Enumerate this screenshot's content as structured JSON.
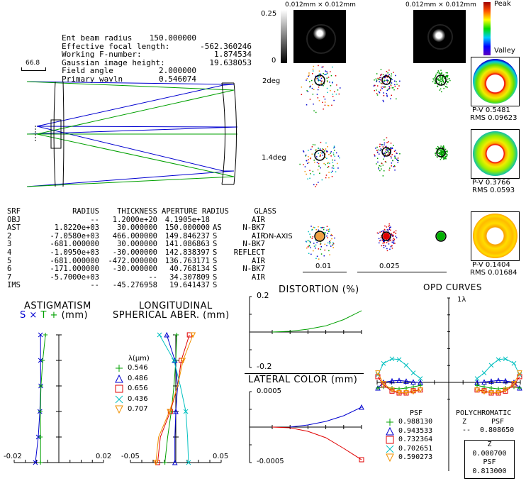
{
  "system_info": {
    "rows": [
      {
        "label": "Ent beam radius",
        "value": "150.000000"
      },
      {
        "label": "Effective focal length:",
        "value": "-562.360246"
      },
      {
        "label": "Working F-number:",
        "value": "1.874534"
      },
      {
        "label": "Gaussian image height:",
        "value": "19.638053"
      },
      {
        "label": "Field angle",
        "value": "2.000000"
      },
      {
        "label": "Primary wavln",
        "value": "0.546074"
      }
    ],
    "scale_bar": "66.8"
  },
  "prescription": {
    "headers": [
      "SRF",
      "RADIUS",
      "THICKNESS",
      "APERTURE RADIUS",
      "",
      "GLASS"
    ],
    "rows": [
      [
        "OBJ",
        "--",
        "1.2000e+20",
        "4.1905e+18",
        "",
        "AIR"
      ],
      [
        "AST",
        "1.8220e+03",
        "30.000000",
        "150.000000",
        "AS",
        "N-BK7"
      ],
      [
        "2",
        "-7.0580e+03",
        "466.000000",
        "149.846237",
        "S",
        "AIR"
      ],
      [
        "3",
        "-681.000000",
        "30.000000",
        "141.086863",
        "S",
        "N-BK7"
      ],
      [
        "4",
        "-1.0950e+03",
        "-30.000000",
        "142.838397",
        "S",
        "REFLECT"
      ],
      [
        "5",
        "-681.000000",
        "-472.000000",
        "136.763171",
        "S",
        "AIR"
      ],
      [
        "6",
        "-171.000000",
        "-30.000000",
        "40.768134",
        "S",
        "N-BK7"
      ],
      [
        "7",
        "-5.7000e+03",
        "--",
        "34.307809",
        "S",
        "AIR"
      ],
      [
        "IMS",
        "--",
        "-45.276958",
        "19.641437",
        "S",
        ""
      ]
    ]
  },
  "psf": {
    "size_label_1": "0.012mm × 0.012mm",
    "size_label_2": "0.012mm × 0.012mm",
    "gray_scale_max": "0.25",
    "gray_scale_min": "0"
  },
  "opd_legend": {
    "peak": "Peak",
    "valley": "Valley"
  },
  "spot_diagrams": {
    "fields": [
      "2deg",
      "1.4deg",
      "ON-AXIS"
    ],
    "scale_1": "0.01",
    "scale_2": "0.025"
  },
  "wavefront_maps": [
    {
      "pv": "P-V 0.5481",
      "rms": "RMS 0.09623"
    },
    {
      "pv": "P-V 0.3766",
      "rms": "RMS 0.0593"
    },
    {
      "pv": "P-V 0.1404",
      "rms": "RMS 0.01684"
    }
  ],
  "psf_values": {
    "title": "PSF",
    "items": [
      {
        "wavelength": "0.546",
        "value": "0.988130",
        "color": "#00a000",
        "marker": "plus"
      },
      {
        "wavelength": "0.486",
        "value": "0.943533",
        "color": "#0000d0",
        "marker": "triangle"
      },
      {
        "wavelength": "0.656",
        "value": "0.732364",
        "color": "#e00000",
        "marker": "square"
      },
      {
        "wavelength": "0.436",
        "value": "0.702651",
        "color": "#00c0c0",
        "marker": "cross"
      },
      {
        "wavelength": "0.707",
        "value": "0.590273",
        "color": "#f09000",
        "marker": "triangle-down"
      }
    ],
    "poly_title": "POLYCHROMATIC",
    "poly_z_label": "Z",
    "poly_psf_label": "PSF",
    "poly_z": "--",
    "poly_psf": "0.808650",
    "box_z_label": "Z",
    "box_z": "0.000700",
    "box_psf_label": "PSF",
    "box_psf": "0.813000"
  },
  "chart_data": [
    {
      "type": "line",
      "title": "ASTIGMATISM",
      "subtitle_s": "S",
      "subtitle_s_mark": "×",
      "subtitle_t": "T",
      "subtitle_t_mark": "+",
      "unit": "(mm)",
      "xlim": [
        -0.02,
        0.02
      ],
      "tick_labels": [
        "-0.02",
        "0.02"
      ],
      "ylim": [
        0,
        1
      ],
      "series": [
        {
          "name": "S",
          "color": "#0000d0",
          "marker": "x",
          "x": [
            -0.0105,
            -0.0092,
            -0.0085,
            -0.0081,
            -0.0082,
            -0.0082
          ],
          "y": [
            0,
            0.2,
            0.4,
            0.6,
            0.8,
            1.0
          ]
        },
        {
          "name": "T",
          "color": "#00a000",
          "marker": "+",
          "x": [
            -0.0082,
            -0.0082,
            -0.0083,
            -0.008,
            -0.0072,
            -0.006
          ],
          "y": [
            0,
            0.2,
            0.4,
            0.6,
            0.8,
            1.0
          ]
        }
      ]
    },
    {
      "type": "line",
      "title": "LONGITUDINAL",
      "subtitle": "SPHERICAL ABER.",
      "unit": "(mm)",
      "legend_title": "λ(μm)",
      "xlim": [
        -0.05,
        0.05
      ],
      "tick_labels": [
        "-0.05",
        "0.05"
      ],
      "ylim": [
        0,
        1
      ],
      "series": [
        {
          "name": "0.546",
          "color": "#00a000",
          "marker": "+",
          "x": [
            -0.012,
            -0.009,
            -0.005,
            -0.002,
            0.0,
            0.001
          ],
          "y": [
            0,
            0.2,
            0.4,
            0.6,
            0.8,
            1.0
          ]
        },
        {
          "name": "0.486",
          "color": "#0000d0",
          "marker": "triangle",
          "x": [
            -0.001,
            -0.001,
            0.0,
            0.002,
            -0.001,
            -0.01
          ],
          "y": [
            0,
            0.2,
            0.4,
            0.6,
            0.8,
            1.0
          ]
        },
        {
          "name": "0.656",
          "color": "#e00000",
          "marker": "square",
          "x": [
            -0.02,
            -0.017,
            -0.006,
            0.002,
            0.006,
            0.015
          ],
          "y": [
            0,
            0.2,
            0.4,
            0.6,
            0.8,
            1.0
          ]
        },
        {
          "name": "0.436",
          "color": "#00c0c0",
          "marker": "cross",
          "x": [
            0.014,
            0.013,
            0.011,
            0.005,
            -0.002,
            -0.018
          ],
          "y": [
            0,
            0.2,
            0.4,
            0.6,
            0.8,
            1.0
          ]
        },
        {
          "name": "0.707",
          "color": "#f09000",
          "marker": "triangle-down",
          "x": [
            -0.022,
            -0.019,
            -0.007,
            0.002,
            0.008,
            0.019
          ],
          "y": [
            0,
            0.2,
            0.4,
            0.6,
            0.8,
            1.0
          ]
        }
      ]
    },
    {
      "type": "line",
      "title": "DISTORTION (%)",
      "ylim": [
        -0.2,
        0.2
      ],
      "tick_labels": [
        "0.2",
        "-0.2"
      ],
      "xlim": [
        0,
        1
      ],
      "series": [
        {
          "name": "0.546",
          "color": "#00a000",
          "x": [
            0.0,
            0.2,
            0.4,
            0.6,
            0.8,
            1.0
          ],
          "y": [
            0.0,
            0.004,
            0.016,
            0.035,
            0.07,
            0.12
          ]
        }
      ]
    },
    {
      "type": "line",
      "title": "LATERAL COLOR (mm)",
      "ylim": [
        -0.0005,
        0.0005
      ],
      "tick_labels": [
        "0.0005",
        "-0.0005"
      ],
      "xlim": [
        0,
        1
      ],
      "series": [
        {
          "name": "0.486",
          "color": "#0000d0",
          "marker": "triangle",
          "x": [
            0.2,
            0.4,
            0.6,
            0.8,
            1.0
          ],
          "y": [
            0.0,
            3e-05,
            8e-05,
            0.00016,
            0.00028
          ]
        },
        {
          "name": "0.656",
          "color": "#e00000",
          "marker": "square",
          "x": [
            0.0,
            0.2,
            0.4,
            0.6,
            0.8,
            1.0
          ],
          "y": [
            0.0,
            -1e-05,
            -6e-05,
            -0.00015,
            -0.0003,
            -0.00046
          ]
        }
      ]
    },
    {
      "type": "line",
      "title": "OPD CURVES",
      "ylabel": "1λ",
      "ylim": [
        -1,
        1
      ],
      "xlim": [
        -1,
        1
      ],
      "series": [
        {
          "name": "0.436",
          "color": "#00c0c0",
          "marker": "x",
          "left": [
            0.2,
            0.5,
            0.62,
            0.6,
            0.45,
            0.25,
            0.1
          ],
          "right": [
            0.1,
            0.25,
            0.45,
            0.6,
            0.62,
            0.5,
            0.2
          ]
        },
        {
          "name": "0.486",
          "color": "#0000d0",
          "marker": "triangle",
          "left": [
            -0.15,
            0.0,
            0.04,
            0.05,
            0.03,
            0.01,
            0.0
          ],
          "right": [
            0.0,
            0.01,
            0.03,
            0.05,
            0.04,
            0.0,
            -0.15
          ]
        },
        {
          "name": "0.546",
          "color": "#00a000",
          "marker": "+",
          "left": [
            -0.15,
            -0.12,
            -0.15,
            -0.17,
            -0.15,
            -0.12,
            -0.08
          ],
          "right": [
            -0.08,
            -0.12,
            -0.15,
            -0.17,
            -0.15,
            -0.12,
            -0.15
          ]
        },
        {
          "name": "0.656",
          "color": "#e00000",
          "marker": "square",
          "left": [
            0.15,
            -0.07,
            -0.23,
            -0.28,
            -0.28,
            -0.22,
            -0.2
          ],
          "right": [
            -0.2,
            -0.22,
            -0.28,
            -0.28,
            -0.23,
            -0.07,
            0.15
          ]
        },
        {
          "name": "0.707",
          "color": "#f09000",
          "marker": "triangle-down",
          "left": [
            0.25,
            -0.03,
            -0.2,
            -0.27,
            -0.27,
            -0.25,
            -0.2
          ],
          "right": [
            -0.2,
            -0.25,
            -0.27,
            -0.27,
            -0.2,
            -0.03,
            0.25
          ]
        }
      ]
    }
  ]
}
